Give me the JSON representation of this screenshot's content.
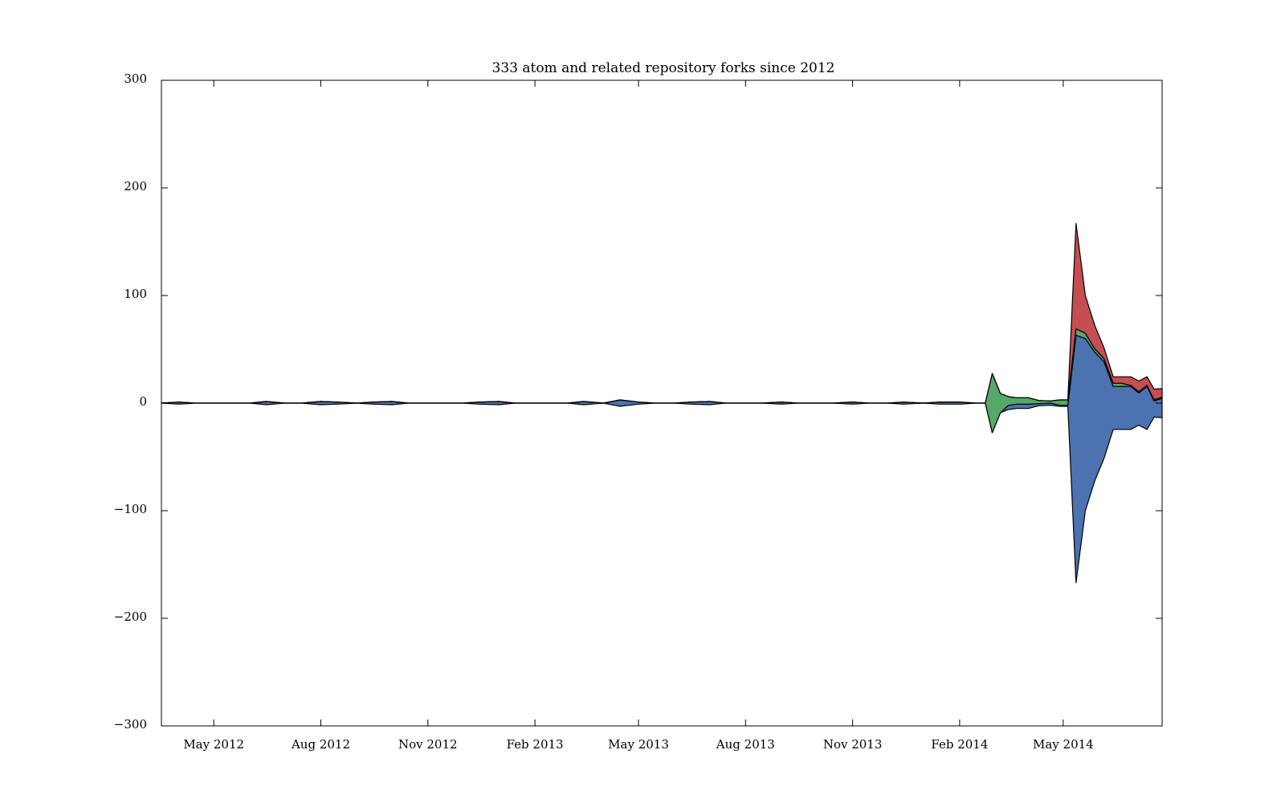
{
  "chart_data": {
    "type": "area",
    "subtype": "streamgraph",
    "title": "333 atom and related repository forks since 2012",
    "xlabel": "",
    "ylabel": "",
    "ylim": [
      -300,
      300
    ],
    "yticks": [
      300,
      200,
      100,
      0,
      -100,
      -200,
      -300
    ],
    "ytick_labels": [
      "300",
      "200",
      "100",
      "0",
      "−100",
      "−200",
      "−300"
    ],
    "xlim": [
      "2012-03-17",
      "2014-07-25"
    ],
    "xticks": [
      "2012-05-01",
      "2012-08-01",
      "2012-11-01",
      "2013-02-01",
      "2013-05-01",
      "2013-08-01",
      "2013-11-01",
      "2014-02-01",
      "2014-05-01"
    ],
    "xtick_labels": [
      "May 2012",
      "Aug 2012",
      "Nov 2012",
      "Feb 2013",
      "May 2013",
      "Aug 2013",
      "Nov 2013",
      "Feb 2014",
      "May 2014"
    ],
    "grid": false,
    "legend": "none",
    "series_colors": [
      "#4c72b0",
      "#55a868",
      "#c44e52"
    ],
    "x": [
      "2012-03-17",
      "2012-04-01",
      "2012-04-15",
      "2012-05-01",
      "2012-05-15",
      "2012-06-01",
      "2012-06-15",
      "2012-07-01",
      "2012-07-15",
      "2012-08-01",
      "2012-08-15",
      "2012-09-01",
      "2012-09-15",
      "2012-10-01",
      "2012-10-15",
      "2012-11-01",
      "2012-11-15",
      "2012-12-01",
      "2012-12-15",
      "2013-01-01",
      "2013-01-15",
      "2013-02-01",
      "2013-02-15",
      "2013-03-01",
      "2013-03-15",
      "2013-04-01",
      "2013-04-15",
      "2013-05-01",
      "2013-05-15",
      "2013-06-01",
      "2013-06-15",
      "2013-07-01",
      "2013-07-15",
      "2013-08-01",
      "2013-08-15",
      "2013-09-01",
      "2013-09-15",
      "2013-10-01",
      "2013-10-15",
      "2013-11-01",
      "2013-11-15",
      "2013-12-01",
      "2013-12-15",
      "2014-01-01",
      "2014-01-15",
      "2014-02-01",
      "2014-02-15",
      "2014-02-23",
      "2014-03-01",
      "2014-03-08",
      "2014-03-15",
      "2014-03-22",
      "2014-04-01",
      "2014-04-10",
      "2014-04-20",
      "2014-04-28",
      "2014-05-05",
      "2014-05-12",
      "2014-05-20",
      "2014-05-28",
      "2014-06-05",
      "2014-06-13",
      "2014-06-20",
      "2014-06-28",
      "2014-07-05",
      "2014-07-12",
      "2014-07-18",
      "2014-07-25"
    ],
    "series": [
      {
        "values": [
          0,
          2,
          0,
          0,
          0,
          0,
          3,
          0,
          0,
          3,
          2,
          0,
          2,
          3,
          0,
          0,
          0,
          0,
          2,
          3,
          0,
          0,
          0,
          0,
          3,
          0,
          6,
          2,
          0,
          0,
          2,
          3,
          0,
          0,
          0,
          2,
          0,
          0,
          0,
          2,
          0,
          0,
          2,
          0,
          2,
          2,
          0,
          0,
          0,
          0,
          4,
          4,
          4,
          2,
          2,
          1,
          1,
          230,
          160,
          120,
          90,
          40,
          40,
          40,
          30,
          40,
          15,
          18
        ]
      },
      {
        "values": [
          0,
          0,
          0,
          0,
          0,
          0,
          0,
          0,
          0,
          0,
          0,
          0,
          0,
          0,
          0,
          0,
          0,
          0,
          0,
          0,
          0,
          0,
          0,
          0,
          0,
          0,
          0,
          0,
          0,
          0,
          0,
          0,
          0,
          0,
          0,
          0,
          0,
          0,
          0,
          0,
          0,
          0,
          0,
          0,
          0,
          0,
          0,
          0,
          55,
          18,
          8,
          6,
          6,
          3,
          2,
          5,
          5,
          6,
          5,
          3,
          3,
          3,
          3,
          1,
          1,
          1,
          1,
          1
        ]
      },
      {
        "values": [
          0,
          0,
          0,
          0,
          0,
          0,
          0,
          0,
          0,
          0,
          0,
          0,
          0,
          0,
          0,
          0,
          0,
          0,
          0,
          0,
          0,
          0,
          0,
          0,
          0,
          0,
          0,
          0,
          0,
          0,
          0,
          0,
          0,
          0,
          0,
          0,
          0,
          0,
          0,
          0,
          0,
          0,
          0,
          0,
          0,
          0,
          0,
          0,
          0,
          0,
          0,
          0,
          0,
          0,
          0,
          0,
          0,
          98,
          35,
          22,
          10,
          6,
          6,
          8,
          10,
          8,
          10,
          8
        ]
      }
    ]
  }
}
